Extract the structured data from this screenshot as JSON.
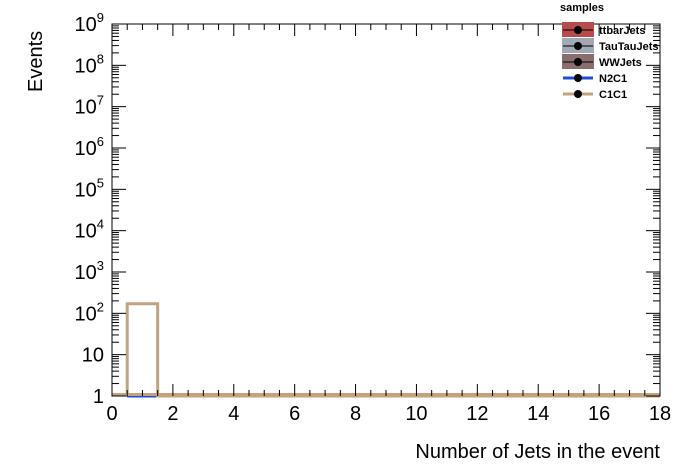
{
  "chart_data": {
    "type": "histogram",
    "xlabel": "Number of Jets in the event",
    "ylabel": "Events",
    "xlim": [
      0,
      18
    ],
    "ylim": [
      1,
      1000000000
    ],
    "yscale": "log",
    "x_ticks": [
      "0",
      "2",
      "4",
      "6",
      "8",
      "10",
      "12",
      "14",
      "16",
      "18"
    ],
    "y_ticks": [
      {
        "base": "1",
        "exp": ""
      },
      {
        "base": "10",
        "exp": ""
      },
      {
        "base": "10",
        "exp": "2"
      },
      {
        "base": "10",
        "exp": "3"
      },
      {
        "base": "10",
        "exp": "4"
      },
      {
        "base": "10",
        "exp": "5"
      },
      {
        "base": "10",
        "exp": "6"
      },
      {
        "base": "10",
        "exp": "7"
      },
      {
        "base": "10",
        "exp": "8"
      },
      {
        "base": "10",
        "exp": "9"
      }
    ],
    "bin_edges": [
      0.5,
      1.5,
      18
    ],
    "legend": {
      "title": "samples",
      "placement": "top-right"
    },
    "series": [
      {
        "name": "ttbarJets",
        "color": "#b84c4c",
        "values": [
          0,
          0
        ]
      },
      {
        "name": "TauTauJets",
        "color": "#a3a8b5",
        "values": [
          0,
          0
        ]
      },
      {
        "name": "WWJets",
        "color": "#8a6e6e",
        "values": [
          0,
          0
        ]
      },
      {
        "name": "N2C1",
        "color": "#1a4fd6",
        "values": [
          0.96,
          0
        ]
      },
      {
        "name": "C1C1",
        "color": "#c4a27e",
        "values": [
          170,
          0
        ]
      }
    ]
  }
}
